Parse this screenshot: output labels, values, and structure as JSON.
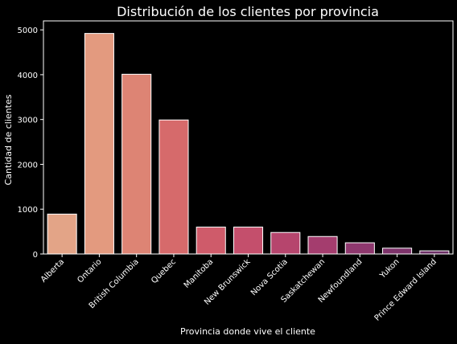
{
  "chart_data": {
    "type": "bar",
    "title": "Distribución de los clientes por provincia",
    "xlabel": "Provincia donde vive el cliente",
    "ylabel": "Cantidad de clientes",
    "categories": [
      "Alberta",
      "Ontario",
      "British Columbia",
      "Quebec",
      "Manitoba",
      "New Brunswick",
      "Nova Scotia",
      "Saskatchewan",
      "Newfoundland",
      "Yukon",
      "Prince Edward Island"
    ],
    "values": [
      890,
      4920,
      4010,
      2990,
      600,
      600,
      480,
      390,
      250,
      130,
      70
    ],
    "ylim": [
      0,
      5200
    ],
    "yticks": [
      0,
      1000,
      2000,
      3000,
      4000,
      5000
    ],
    "grid": false,
    "legend": "none",
    "colors": [
      "#e3a487",
      "#e39a7f",
      "#dd8474",
      "#d66a6b",
      "#cf5b6a",
      "#c44f6c",
      "#b6456d",
      "#a43d6e",
      "#8e386e",
      "#7e336b",
      "#6b2f66"
    ],
    "background": "#000000",
    "text_color": "#ffffff"
  }
}
